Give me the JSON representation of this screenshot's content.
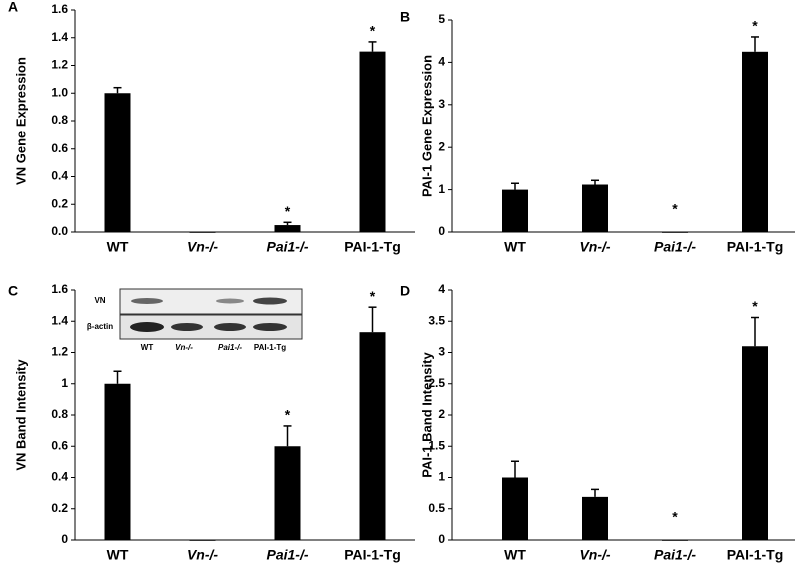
{
  "chart_data": [
    {
      "type": "bar",
      "panel_label": "A",
      "y_label": "VN Gene Expression",
      "categories": [
        "WT",
        "Vn-/-",
        "Pai1-/-",
        "PAI-1-Tg"
      ],
      "values": [
        1.0,
        0,
        0.05,
        1.3
      ],
      "errors": [
        0.04,
        null,
        0.02,
        0.07
      ],
      "significance": [
        null,
        null,
        "*",
        "*"
      ],
      "color": "#000000",
      "ylim": [
        0,
        1.6
      ],
      "yticks": [
        {
          "value": 0,
          "label": "0.0"
        },
        {
          "value": 0.2,
          "label": "0.2"
        },
        {
          "value": 0.4,
          "label": "0.4"
        },
        {
          "value": 0.6,
          "label": "0.6"
        },
        {
          "value": 0.8,
          "label": "0.8"
        },
        {
          "value": 1,
          "label": "1.0"
        },
        {
          "value": 1.2,
          "label": "1.2"
        },
        {
          "value": 1.4,
          "label": "1.4"
        },
        {
          "value": 1.6,
          "label": "1.6"
        }
      ]
    },
    {
      "type": "bar",
      "panel_label": "B",
      "y_label": "PAI-1 Gene Expression",
      "categories": [
        "WT",
        "Vn-/-",
        "Pai1-/-",
        "PAI-1-Tg"
      ],
      "values": [
        1.0,
        1.12,
        0,
        4.25
      ],
      "errors": [
        0.15,
        0.1,
        null,
        0.35
      ],
      "significance": [
        null,
        null,
        "*",
        "*"
      ],
      "color": "#000000",
      "ylim": [
        0,
        5
      ],
      "yticks": [
        0,
        1,
        2,
        3,
        4,
        5
      ]
    },
    {
      "type": "bar",
      "panel_label": "C",
      "y_label": "VN Band Intensity",
      "categories": [
        "WT",
        "Vn-/-",
        "Pai1-/-",
        "PAI-1-Tg"
      ],
      "values": [
        1.0,
        0,
        0.6,
        1.33
      ],
      "errors": [
        0.08,
        null,
        0.13,
        0.16
      ],
      "significance": [
        null,
        null,
        "*",
        "*"
      ],
      "color": "#000000",
      "ylim": [
        0,
        1.6
      ],
      "yticks": [
        0,
        0.2,
        0.4,
        0.6,
        0.8,
        1,
        1.2,
        1.4,
        1.6
      ],
      "inset": {
        "rows": [
          "VN",
          "β-actin"
        ],
        "lanes": [
          "WT",
          "Vn-/-",
          "Pai1-/-",
          "PAI-1-Tg"
        ]
      }
    },
    {
      "type": "bar",
      "panel_label": "D",
      "y_label": "PAI-1 Band Intensity",
      "categories": [
        "WT",
        "Vn-/-",
        "Pai1-/-",
        "PAI-1-Tg"
      ],
      "values": [
        1.0,
        0.69,
        0,
        3.1
      ],
      "errors": [
        0.26,
        0.12,
        null,
        0.46
      ],
      "significance": [
        null,
        null,
        "*",
        "*"
      ],
      "color": "#000000",
      "ylim": [
        0,
        4
      ],
      "yticks": [
        0,
        0.5,
        1,
        1.5,
        2,
        2.5,
        3,
        3.5,
        4
      ]
    }
  ]
}
